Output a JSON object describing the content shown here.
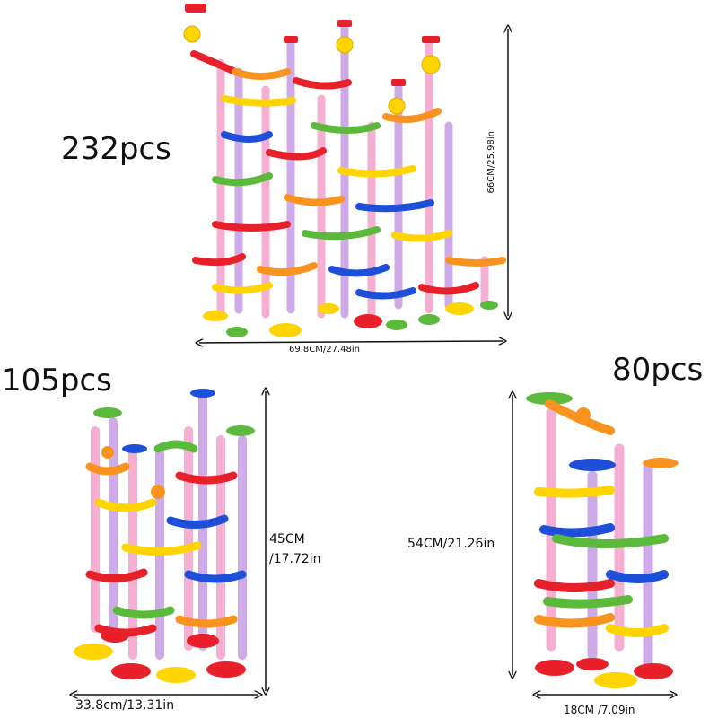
{
  "sets": [
    {
      "count_label": "232pcs",
      "height_label": "66CM/25.98in",
      "width_label": "69.8CM/27.48in"
    },
    {
      "count_label": "105pcs",
      "height_label": "45CM\n/17.72in",
      "width_label": "33.8cm/13.31in"
    },
    {
      "count_label": "80pcs",
      "height_label": "54CM/21.26in",
      "width_label": "18CM /7.09in"
    }
  ],
  "colors": {
    "red": "#e8202a",
    "orange": "#f7931e",
    "yellow": "#ffd400",
    "green": "#5bb93b",
    "blue": "#1e4fd8",
    "pink_tube": "#f3a7cf",
    "purple_tube": "#c9a3e6"
  }
}
